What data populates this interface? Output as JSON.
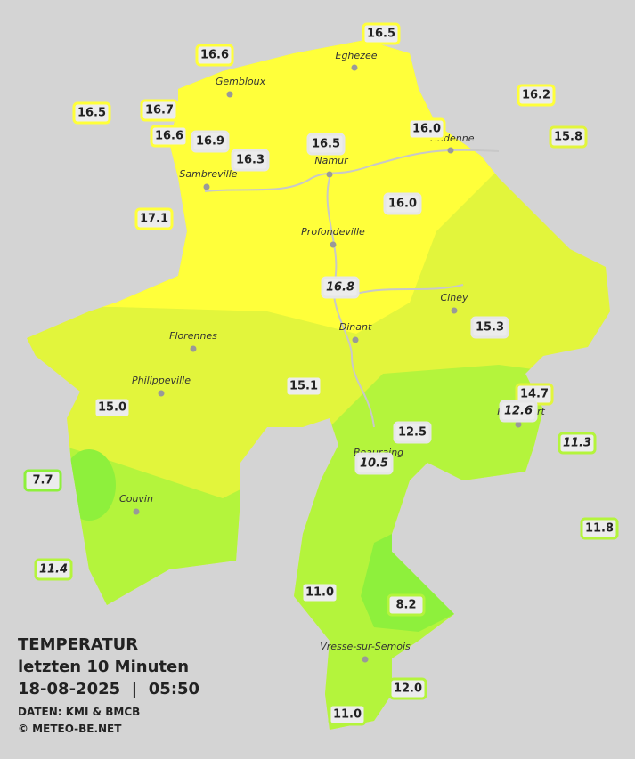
{
  "header": {
    "title": "TEMPERATUR",
    "period": "letzten 10 Minuten",
    "datetime": "18-08-2025  |  05:50",
    "source": "DATEN: KMI & BMCB",
    "copyright": "© METEO-BE.NET"
  },
  "towns": [
    "Eghezee",
    "Gembloux",
    "Andenne",
    "Namur",
    "Sambreville",
    "Profondeville",
    "Ciney",
    "Florennes",
    "Dinant",
    "Philippeville",
    "Rochefort",
    "Beauraing",
    "Couvin",
    "Vresse-sur-Semois"
  ],
  "stations": [
    "16.5",
    "16.6",
    "16.2",
    "16.5",
    "16.7",
    "16.6",
    "16.9",
    "16.3",
    "16.5",
    "16.0",
    "15.8",
    "17.1",
    "16.0",
    "16.8",
    "15.3",
    "15.1",
    "15.0",
    "14.7",
    "12.6",
    "12.5",
    "11.3",
    "10.5",
    "7.7",
    "11.8",
    "11.4",
    "11.0",
    "8.2",
    "12.0",
    "11.0"
  ]
}
